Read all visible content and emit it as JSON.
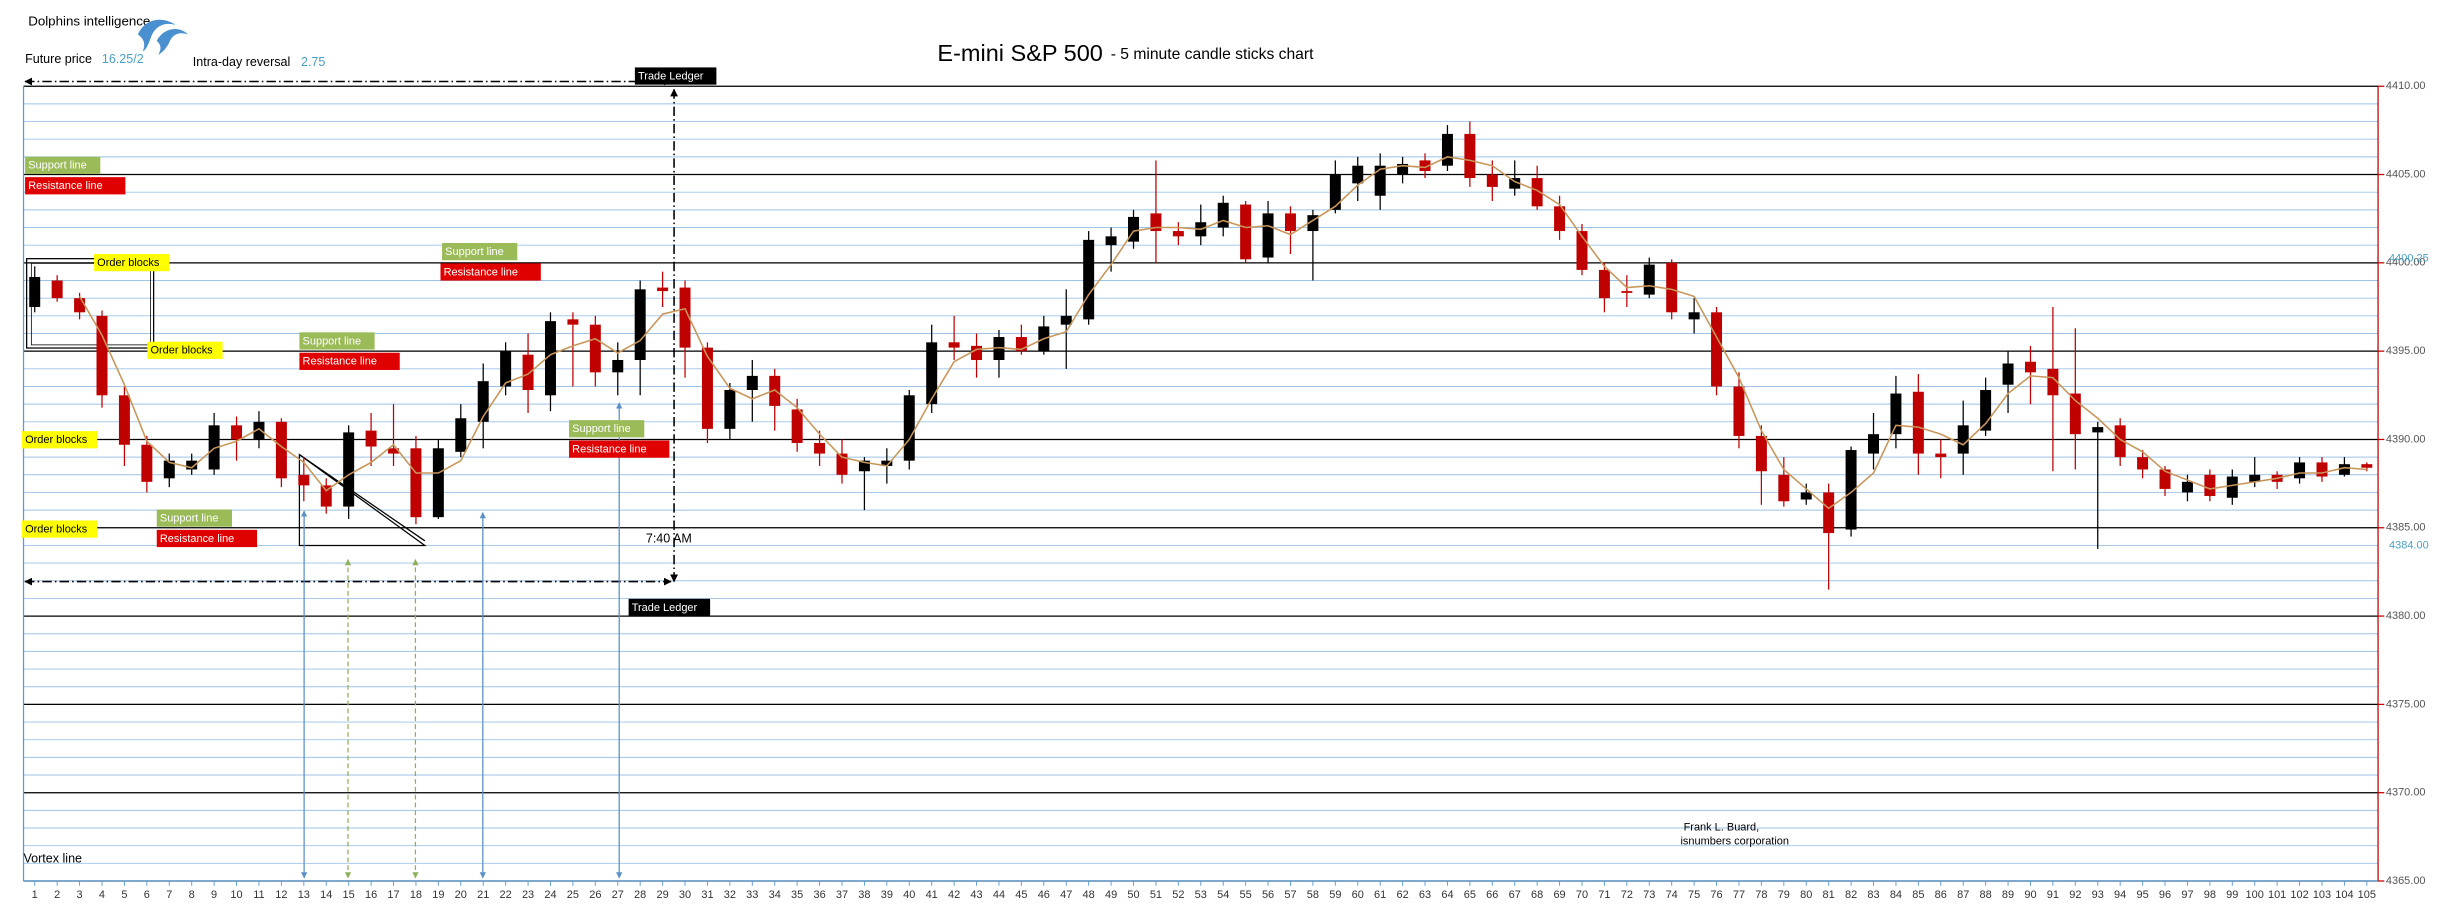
{
  "header": {
    "brand": "Dolphins intelligence",
    "future_price_label": "Future price",
    "future_price": "16.25/2",
    "reversal_label": "Intra-day reversal",
    "reversal": "2.75"
  },
  "chart_data": {
    "type": "candlestick",
    "title": "E-mini S&P 500",
    "subtitle": "- 5 minute candle sticks chart",
    "x": [
      1,
      2,
      3,
      4,
      5,
      6,
      7,
      8,
      9,
      10,
      11,
      12,
      13,
      14,
      15,
      16,
      17,
      18,
      19,
      20,
      21,
      22,
      23,
      24,
      25,
      26,
      27,
      28,
      29,
      30,
      31,
      32,
      33,
      34,
      35,
      36,
      37,
      38,
      39,
      40,
      41,
      42,
      43,
      44,
      45,
      46,
      47,
      48,
      49,
      50,
      51,
      52,
      53,
      54,
      55,
      56,
      57,
      58,
      59,
      60,
      61,
      62,
      63,
      64,
      65,
      66,
      67,
      68,
      69,
      70,
      71,
      72,
      73,
      74,
      75,
      76,
      77,
      78,
      79,
      80,
      81,
      82,
      83,
      84,
      85,
      86,
      87,
      88,
      89,
      90,
      91,
      92,
      93,
      94,
      95,
      96,
      97,
      98,
      99,
      100,
      101,
      102,
      103,
      104,
      105
    ],
    "open": [
      4397.5,
      4399.0,
      4398.0,
      4397.0,
      4392.5,
      4389.7,
      4387.8,
      4388.3,
      4388.3,
      4390.8,
      4390.0,
      4391.0,
      4388.0,
      4387.4,
      4386.2,
      4390.5,
      4389.5,
      4389.5,
      4385.6,
      4389.3,
      4391.0,
      4393.0,
      4394.8,
      4392.5,
      4396.8,
      4396.5,
      4393.8,
      4394.5,
      4398.6,
      4398.6,
      4395.2,
      4390.6,
      4392.8,
      4393.6,
      4391.7,
      4389.8,
      4389.2,
      4388.2,
      4388.5,
      4388.8,
      4392.0,
      4395.5,
      4395.3,
      4394.5,
      4395.8,
      4395.0,
      4396.5,
      4396.8,
      4401.0,
      4401.2,
      4402.8,
      4401.8,
      4401.5,
      4402.0,
      4403.3,
      4400.3,
      4402.8,
      4401.8,
      4403.0,
      4404.5,
      4403.8,
      4405.0,
      4405.8,
      4405.5,
      4407.3,
      4405.0,
      4404.2,
      4404.8,
      4403.2,
      4401.8,
      4399.6,
      4398.4,
      4398.2,
      4400.0,
      4396.8,
      4397.2,
      4393.0,
      4390.2,
      4388.0,
      4386.6,
      4387.0,
      4384.9,
      4389.2,
      4390.3,
      4392.7,
      4389.2,
      4389.2,
      4390.5,
      4393.1,
      4394.4,
      4394.0,
      4392.6,
      4390.4,
      4390.8,
      4389.0,
      4388.3,
      4387.0,
      4388.0,
      4386.7,
      4387.6,
      4388.0,
      4387.8,
      4388.7,
      4388.0,
      4388.6
    ],
    "high": [
      4399.8,
      4399.3,
      4398.3,
      4397.3,
      4393.0,
      4390.2,
      4389.2,
      4389.2,
      4391.5,
      4391.3,
      4391.6,
      4391.2,
      4389.0,
      4387.8,
      4390.8,
      4391.5,
      4392.0,
      4390.2,
      4390.0,
      4392.0,
      4394.3,
      4395.5,
      4396.0,
      4397.2,
      4397.2,
      4397.0,
      4395.5,
      4399.0,
      4399.5,
      4399.0,
      4395.5,
      4393.2,
      4394.5,
      4394.0,
      4392.3,
      4390.5,
      4390.0,
      4389.0,
      4389.5,
      4392.8,
      4396.5,
      4397.0,
      4396.0,
      4396.2,
      4396.5,
      4397.0,
      4398.5,
      4401.8,
      4402.0,
      4403.0,
      4405.8,
      4402.3,
      4403.3,
      4403.8,
      4403.5,
      4403.5,
      4403.2,
      4403.0,
      4405.8,
      4406.0,
      4406.2,
      4406.0,
      4406.2,
      4407.8,
      4408.0,
      4405.8,
      4405.8,
      4405.5,
      4403.8,
      4402.2,
      4400.0,
      4399.3,
      4400.3,
      4400.2,
      4398.0,
      4397.5,
      4393.8,
      4390.8,
      4389.0,
      4387.5,
      4387.5,
      4389.6,
      4391.5,
      4393.6,
      4393.7,
      4390.0,
      4392.2,
      4393.5,
      4395.0,
      4395.3,
      4397.5,
      4396.3,
      4391.0,
      4391.2,
      4389.4,
      4388.5,
      4388.0,
      4388.3,
      4388.3,
      4389.0,
      4388.2,
      4389.0,
      4389.0,
      4389.0,
      4388.7
    ],
    "low": [
      4397.2,
      4397.8,
      4396.8,
      4391.8,
      4388.5,
      4387.0,
      4387.3,
      4388.0,
      4388.0,
      4388.8,
      4389.5,
      4387.3,
      4386.5,
      4385.8,
      4385.5,
      4388.5,
      4388.5,
      4385.2,
      4385.5,
      4389.0,
      4389.5,
      4392.5,
      4391.5,
      4391.6,
      4393.0,
      4393.0,
      4392.5,
      4392.5,
      4397.5,
      4393.5,
      4389.8,
      4390.0,
      4391.0,
      4390.5,
      4389.3,
      4388.5,
      4387.5,
      4386.0,
      4387.5,
      4388.3,
      4391.5,
      4394.5,
      4393.5,
      4393.5,
      4394.8,
      4394.8,
      4394.0,
      4396.5,
      4399.5,
      4400.8,
      4400.0,
      4401.0,
      4401.0,
      4401.5,
      4400.0,
      4400.0,
      4400.5,
      4399.0,
      4402.8,
      4403.5,
      4403.0,
      4404.5,
      4404.8,
      4405.2,
      4404.3,
      4403.5,
      4403.8,
      4403.0,
      4401.3,
      4399.3,
      4397.2,
      4397.5,
      4398.0,
      4396.8,
      4396.0,
      4392.5,
      4389.5,
      4386.3,
      4386.2,
      4386.3,
      4381.5,
      4384.5,
      4388.3,
      4389.5,
      4388.0,
      4387.8,
      4388.0,
      4390.2,
      4391.5,
      4392.0,
      4388.2,
      4388.3,
      4383.8,
      4388.5,
      4387.8,
      4386.8,
      4386.5,
      4386.5,
      4386.3,
      4387.3,
      4387.2,
      4387.5,
      4387.6,
      4387.9,
      4388.2
    ],
    "close": [
      4399.2,
      4398.0,
      4397.2,
      4392.5,
      4389.7,
      4387.6,
      4388.8,
      4388.8,
      4390.8,
      4390.0,
      4391.0,
      4387.8,
      4387.4,
      4386.2,
      4390.4,
      4389.6,
      4389.2,
      4385.6,
      4389.5,
      4391.2,
      4393.3,
      4395.0,
      4392.8,
      4396.7,
      4396.5,
      4393.8,
      4394.5,
      4398.5,
      4398.4,
      4395.2,
      4390.6,
      4392.8,
      4393.6,
      4391.9,
      4389.8,
      4389.2,
      4388.0,
      4388.8,
      4388.8,
      4392.5,
      4395.5,
      4395.2,
      4394.5,
      4395.8,
      4395.0,
      4396.4,
      4397.0,
      4401.3,
      4401.5,
      4402.6,
      4401.8,
      4401.5,
      4402.3,
      4403.4,
      4400.2,
      4402.8,
      4401.8,
      4402.7,
      4405.0,
      4405.5,
      4405.5,
      4405.6,
      4405.2,
      4407.3,
      4404.8,
      4404.3,
      4404.8,
      4403.2,
      4401.8,
      4399.6,
      4398.0,
      4398.3,
      4399.9,
      4397.2,
      4397.2,
      4393.0,
      4390.2,
      4388.2,
      4386.5,
      4387.0,
      4384.7,
      4389.4,
      4390.3,
      4392.6,
      4389.2,
      4389.0,
      4390.8,
      4392.8,
      4394.3,
      4393.8,
      4392.5,
      4390.3,
      4390.7,
      4389.0,
      4388.3,
      4387.2,
      4387.6,
      4386.8,
      4387.9,
      4388.0,
      4387.6,
      4388.7,
      4387.9,
      4388.6,
      4388.4
    ],
    "up_color": "#000000",
    "down_color": "#c00000",
    "moving_average": {
      "color": "#c8965a",
      "values": [
        null,
        null,
        4398.1,
        4395.9,
        4393.1,
        4389.9,
        4388.7,
        4388.4,
        4389.5,
        4389.9,
        4390.6,
        4389.6,
        4388.7,
        4387.1,
        4388.0,
        4388.7,
        4389.7,
        4388.1,
        4388.1,
        4388.8,
        4391.3,
        4393.2,
        4393.7,
        4394.8,
        4395.3,
        4395.7,
        4394.9,
        4395.6,
        4397.1,
        4397.4,
        4394.7,
        4392.9,
        4392.3,
        4392.8,
        4391.8,
        4390.3,
        4389.0,
        4388.7,
        4388.5,
        4390.0,
        4392.3,
        4394.4,
        4395.1,
        4395.2,
        4395.1,
        4395.7,
        4396.1,
        4398.2,
        4399.9,
        4401.8,
        4402.0,
        4402.0,
        4401.9,
        4402.4,
        4402.0,
        4402.1,
        4401.6,
        4402.4,
        4403.2,
        4404.4,
        4405.3,
        4405.5,
        4405.4,
        4406.0,
        4405.8,
        4405.5,
        4404.6,
        4404.1,
        4403.3,
        4401.5,
        4399.8,
        4398.6,
        4398.7,
        4398.5,
        4398.1,
        4395.8,
        4393.5,
        4390.5,
        4388.3,
        4387.2,
        4386.1,
        4387.0,
        4388.1,
        4390.8,
        4390.7,
        4390.3,
        4389.7,
        4390.9,
        4392.6,
        4393.6,
        4393.5,
        4392.2,
        4391.2,
        4390.0,
        4389.3,
        4388.2,
        4387.7,
        4387.2,
        4387.4,
        4387.6,
        4387.8,
        4388.1,
        4388.1,
        4388.4,
        4388.3
      ]
    },
    "ylim": [
      4365,
      4410
    ],
    "yticks": [
      {
        "value": 4365,
        "label": "4365.00"
      },
      {
        "value": 4370,
        "label": "4370.00"
      },
      {
        "value": 4375,
        "label": "4375.00"
      },
      {
        "value": 4380,
        "label": "4380.00"
      },
      {
        "value": 4385,
        "label": "4385.00"
      },
      {
        "value": 4390,
        "label": "4390.00"
      },
      {
        "value": 4395,
        "label": "4395.00"
      },
      {
        "value": 4400,
        "label": "4400.00"
      },
      {
        "value": 4405,
        "label": "4405.00"
      },
      {
        "value": 4410,
        "label": "4410.00"
      }
    ],
    "minor_ystep": 1,
    "grid": true,
    "price_markers": [
      {
        "value": 4400.25,
        "label": "4400.25"
      },
      {
        "value": 4384,
        "label": "4384.00"
      }
    ],
    "price_marker_color": "#4a9fc8"
  },
  "annotations": {
    "support_labels": [
      "Support line",
      "Support line",
      "Support line",
      "Support line",
      "Support line"
    ],
    "resistance_labels": [
      "Resistance line",
      "Resistance line",
      "Resistance line",
      "Resistance line",
      "Resistance line"
    ],
    "order_block_labels": [
      "Order blocks",
      "Order blocks",
      "Order blocks",
      "Order blocks"
    ],
    "trade_ledger_labels": [
      "Trade Ledger",
      "Trade Ledger"
    ],
    "time_label": "7:40 AM",
    "vortex_label": "Vortex line"
  },
  "footer": {
    "author": "Frank L. Buard,",
    "company": "isnumbers corporation"
  }
}
